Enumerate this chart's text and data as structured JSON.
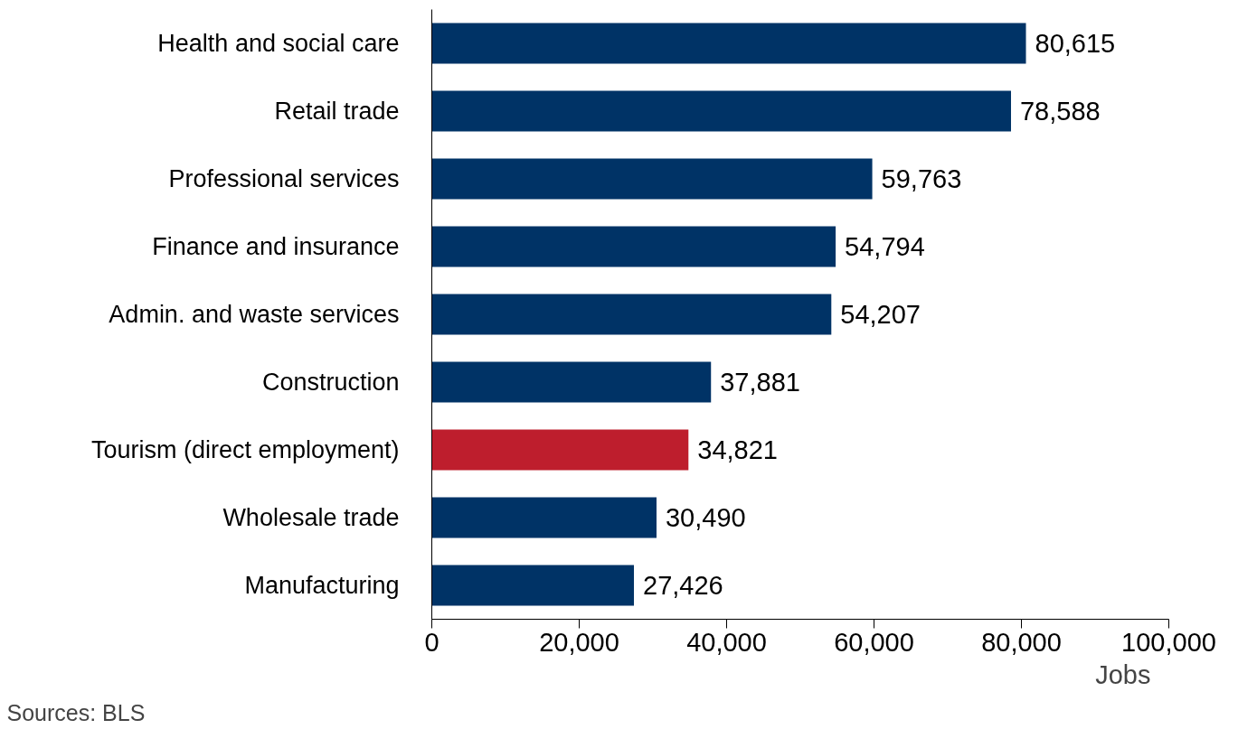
{
  "chart_data": {
    "type": "bar",
    "orientation": "horizontal",
    "xlabel": "Jobs",
    "categories": [
      "Health and social care",
      "Retail trade",
      "Professional services",
      "Finance and insurance",
      "Admin. and waste services",
      "Construction",
      "Tourism (direct employment)",
      "Wholesale trade",
      "Manufacturing"
    ],
    "values": [
      80615,
      78588,
      59763,
      54794,
      54207,
      37881,
      34821,
      30490,
      27426
    ],
    "colors": [
      "#003366",
      "#003366",
      "#003366",
      "#003366",
      "#003366",
      "#003366",
      "#be1e2d",
      "#003366",
      "#003366"
    ],
    "xlim": [
      0,
      100000
    ],
    "xticks": [
      0,
      {
        "value": 20000,
        "label": "20,000"
      },
      {
        "value": 40000,
        "label": "40,000"
      },
      {
        "value": 60000,
        "label": "60,000"
      },
      {
        "value": 80000,
        "label": "80,000"
      },
      {
        "value": 100000,
        "label": "100,000"
      }
    ],
    "value_labels": [
      "80,615",
      "78,588",
      "59,763",
      "54,794",
      "54,207",
      "37,881",
      "34,821",
      "30,490",
      "27,426"
    ],
    "grid": false,
    "annotations": [
      "Sources: BLS"
    ]
  }
}
